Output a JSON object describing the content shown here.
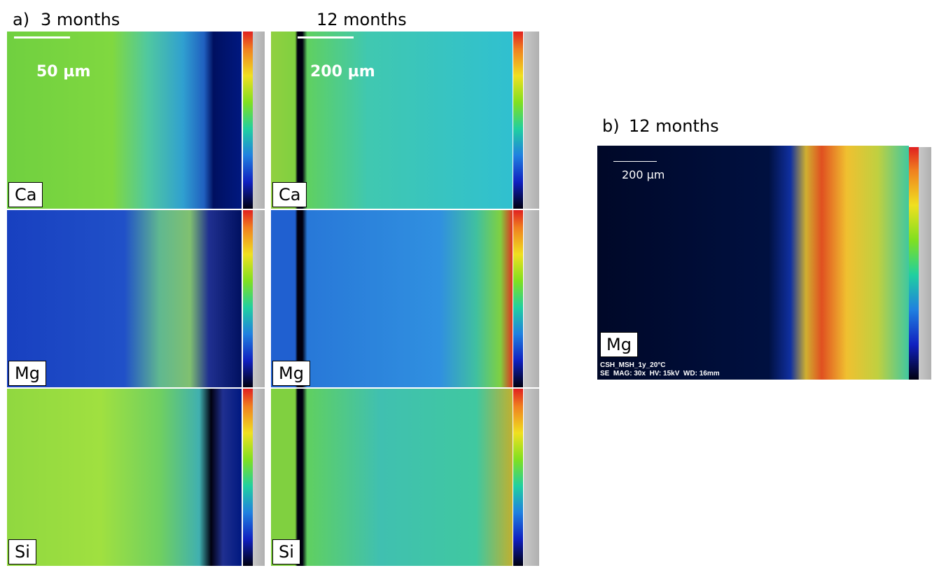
{
  "panel_a": {
    "label": "a)",
    "columns": [
      {
        "title": "3 months",
        "scale_bar": "50 µm",
        "maps": [
          "Ca",
          "Mg",
          "Si"
        ]
      },
      {
        "title": "12 months",
        "scale_bar": "200 µm",
        "maps": [
          "Ca",
          "Mg",
          "Si"
        ]
      }
    ]
  },
  "panel_b": {
    "label": "b)",
    "title": "12 months",
    "scale_bar": "200 µm",
    "map": "Mg",
    "caption_lines": [
      "CSH_MSH_1y_20°C",
      "SE  MAG: 30x  HV: 15kV  WD: 16mm"
    ]
  }
}
